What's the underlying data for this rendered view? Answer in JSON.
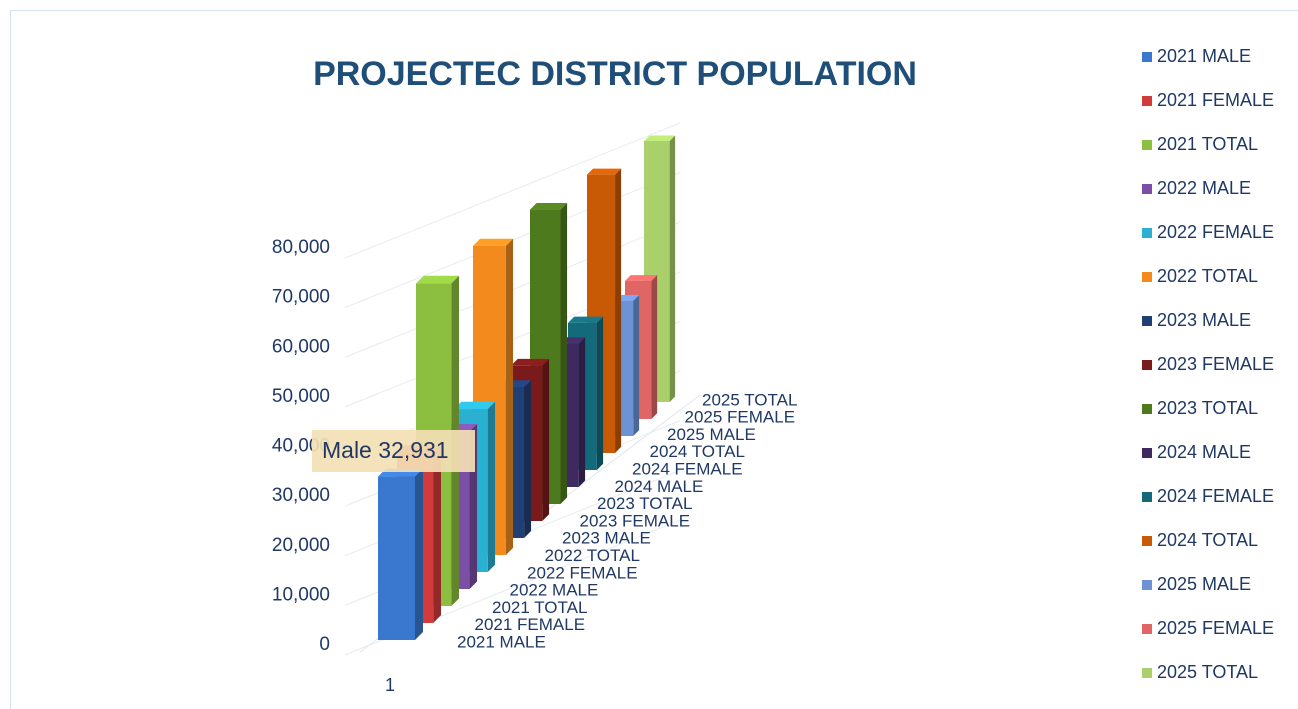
{
  "chart_data": {
    "type": "bar3d",
    "title": "PROJECTEC DISTRICT POPULATION",
    "categories": [
      "1"
    ],
    "series": [
      {
        "name": "2021 MALE",
        "color": "#3a78d0",
        "values": [
          32931
        ],
        "value_labels": [
          "Male 32,931"
        ]
      },
      {
        "name": "2021 FEMALE",
        "color": "#d23b3b",
        "values": [
          35000
        ]
      },
      {
        "name": "2021 TOTAL",
        "color": "#8cbf3f",
        "values": [
          68000
        ]
      },
      {
        "name": "2022 MALE",
        "color": "#7b4fa6",
        "values": [
          34000
        ]
      },
      {
        "name": "2022 FEMALE",
        "color": "#2ab0d0",
        "values": [
          36000
        ]
      },
      {
        "name": "2022 TOTAL",
        "color": "#f28a1e",
        "values": [
          70000
        ]
      },
      {
        "name": "2023 MALE",
        "color": "#1f3f75",
        "values": [
          35000
        ]
      },
      {
        "name": "2023 FEMALE",
        "color": "#7a1a1a",
        "values": [
          37000
        ]
      },
      {
        "name": "2023 TOTAL",
        "color": "#4e7a1e",
        "values": [
          72000
        ]
      },
      {
        "name": "2024 MALE",
        "color": "#3e2a60",
        "values": [
          36000
        ]
      },
      {
        "name": "2024 FEMALE",
        "color": "#136a7a",
        "values": [
          38000
        ]
      },
      {
        "name": "2024 TOTAL",
        "color": "#c85a06",
        "values": [
          74000
        ]
      },
      {
        "name": "2025 MALE",
        "color": "#6b93d6",
        "values": [
          37000
        ]
      },
      {
        "name": "2025 FEMALE",
        "color": "#e06666",
        "values": [
          39000
        ]
      },
      {
        "name": "2025 TOTAL",
        "color": "#a9d06a",
        "values": [
          76000
        ]
      }
    ],
    "ylim": [
      0,
      80000
    ],
    "yticks": [
      0,
      {
        "value": 10000,
        "label": "10,000"
      },
      {
        "value": 20000,
        "label": "20,000"
      },
      {
        "value": 30000,
        "label": "30,000"
      },
      {
        "value": 40000,
        "label": "40,000"
      },
      {
        "value": 50000,
        "label": "50,000"
      },
      {
        "value": 60000,
        "label": "60,000"
      },
      {
        "value": 70000,
        "label": "70,000"
      },
      {
        "value": 80000,
        "label": "80,000"
      }
    ],
    "grid": true,
    "legend": "right"
  }
}
